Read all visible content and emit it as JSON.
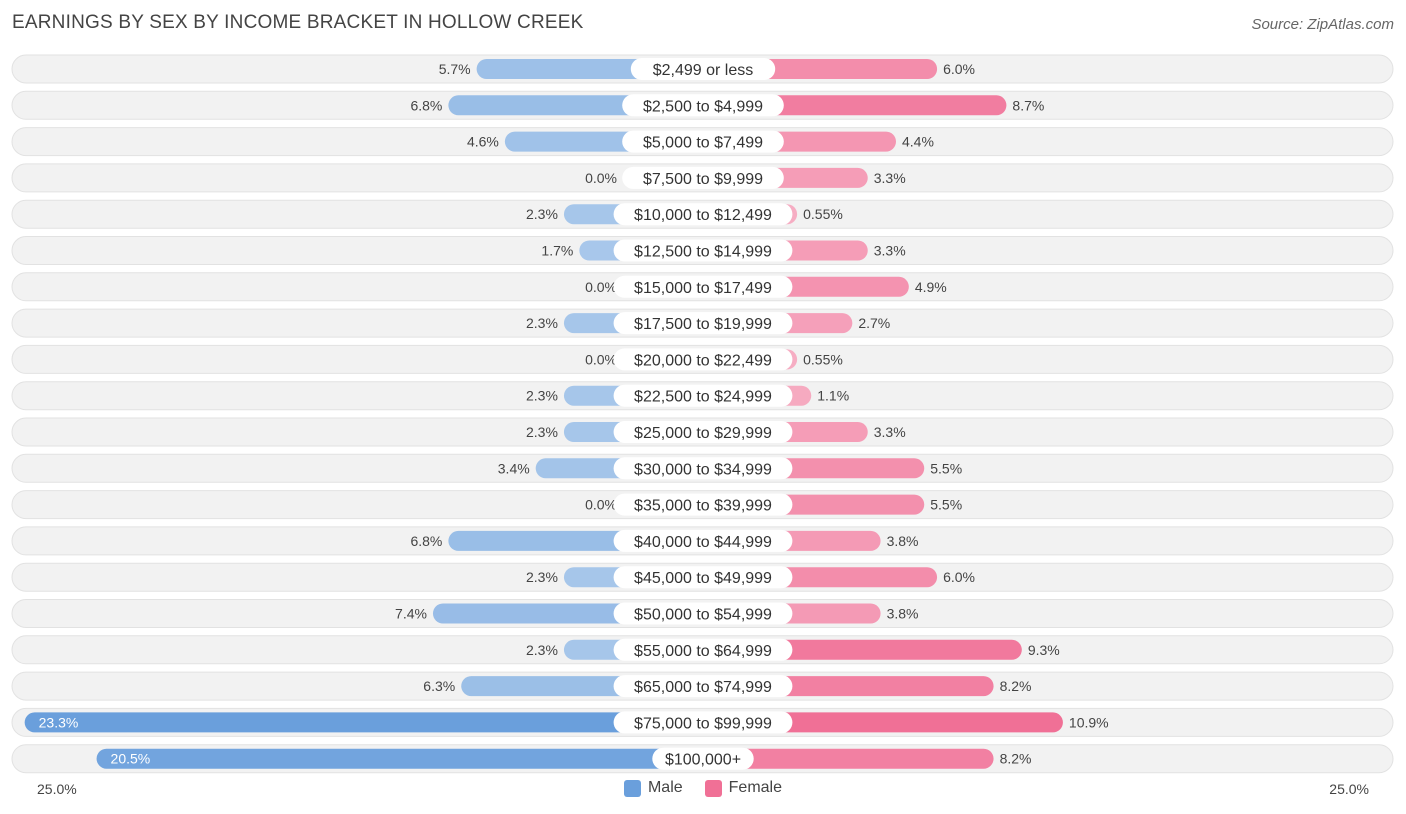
{
  "chart_data": {
    "type": "bar",
    "orientation": "horizontal-diverging",
    "title": "EARNINGS BY SEX BY INCOME BRACKET IN HOLLOW CREEK",
    "source": "Source: ZipAtlas.com",
    "categories": [
      "$2,499 or less",
      "$2,500 to $4,999",
      "$5,000 to $7,499",
      "$7,500 to $9,999",
      "$10,000 to $12,499",
      "$12,500 to $14,999",
      "$15,000 to $17,499",
      "$17,500 to $19,999",
      "$20,000 to $22,499",
      "$22,500 to $24,999",
      "$25,000 to $29,999",
      "$30,000 to $34,999",
      "$35,000 to $39,999",
      "$40,000 to $44,999",
      "$45,000 to $49,999",
      "$50,000 to $54,999",
      "$55,000 to $64,999",
      "$65,000 to $74,999",
      "$75,000 to $99,999",
      "$100,000+"
    ],
    "series": [
      {
        "name": "Male",
        "color": "#6a9fdc",
        "values": [
          5.7,
          6.8,
          4.6,
          0.0,
          2.3,
          1.7,
          0.0,
          2.3,
          0.0,
          2.3,
          2.3,
          3.4,
          0.0,
          6.8,
          2.3,
          7.4,
          2.3,
          6.3,
          23.3,
          20.5
        ],
        "labels": [
          "5.7%",
          "6.8%",
          "4.6%",
          "0.0%",
          "2.3%",
          "1.7%",
          "0.0%",
          "2.3%",
          "0.0%",
          "2.3%",
          "2.3%",
          "3.4%",
          "0.0%",
          "6.8%",
          "2.3%",
          "7.4%",
          "2.3%",
          "6.3%",
          "23.3%",
          "20.5%"
        ]
      },
      {
        "name": "Female",
        "color": "#f07096",
        "values": [
          6.0,
          8.7,
          4.4,
          3.3,
          0.55,
          3.3,
          4.9,
          2.7,
          0.55,
          1.1,
          3.3,
          5.5,
          5.5,
          3.8,
          6.0,
          3.8,
          9.3,
          8.2,
          10.9,
          8.2
        ],
        "labels": [
          "6.0%",
          "8.7%",
          "4.4%",
          "3.3%",
          "0.55%",
          "3.3%",
          "4.9%",
          "2.7%",
          "0.55%",
          "1.1%",
          "3.3%",
          "5.5%",
          "5.5%",
          "3.8%",
          "6.0%",
          "3.8%",
          "9.3%",
          "8.2%",
          "10.9%",
          "8.2%"
        ]
      }
    ],
    "xlim": [
      -25,
      25
    ],
    "axis_labels": {
      "left": "25.0%",
      "right": "25.0%"
    },
    "legend": [
      "Male",
      "Female"
    ],
    "legend_position": "bottom-center"
  }
}
